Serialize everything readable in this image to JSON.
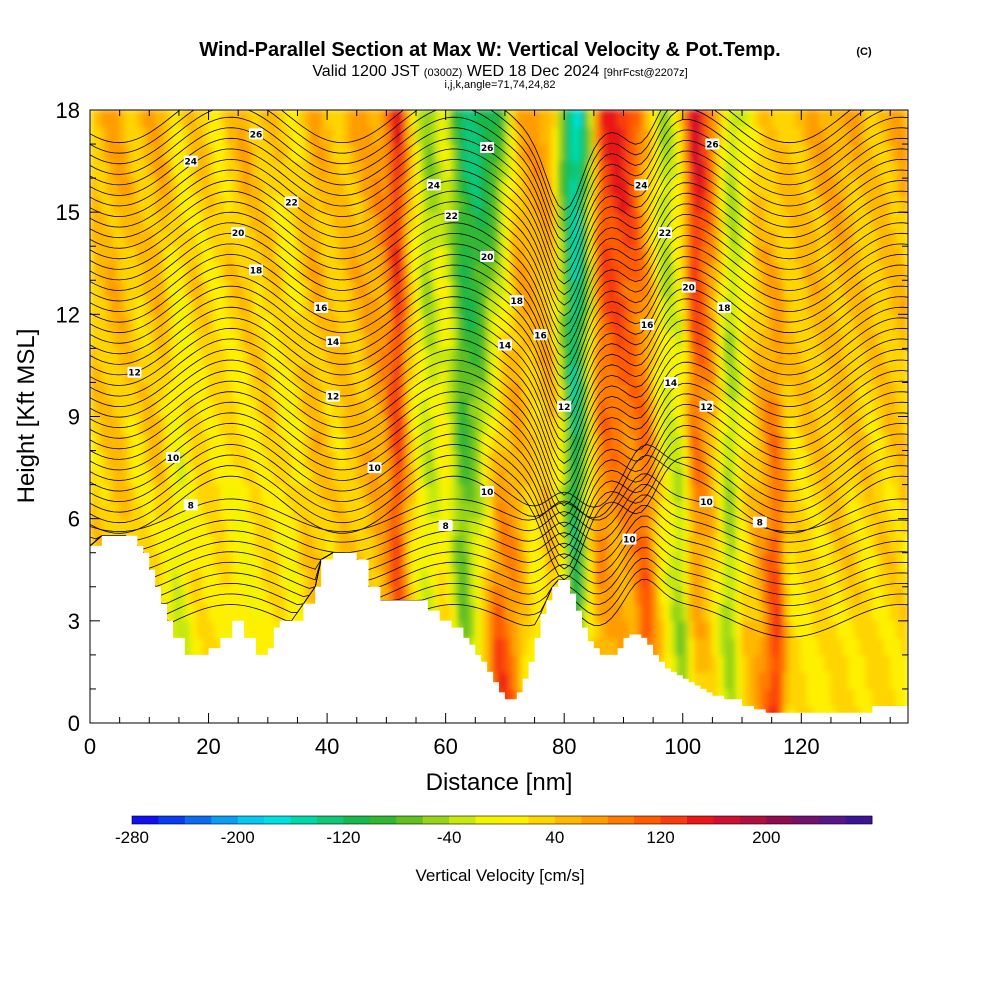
{
  "chart_data": {
    "type": "heatmap",
    "title": "Wind-Parallel Section at Max W: Vertical Velocity & Pot.Temp.",
    "title_mark": "(C)",
    "subtitle": {
      "pre": "Valid 1200 JST",
      "utc": "(0300Z)",
      "mid": "WED 18 Dec 2024",
      "fcst": "[9hrFcst@2207z]"
    },
    "subtitle2": "i,j,k,angle=71,74,24,82",
    "xlabel": "Distance [nm]",
    "ylabel": "Height [Kft MSL]",
    "xlim": [
      0,
      138
    ],
    "ylim": [
      0,
      18
    ],
    "x_ticks": [
      0,
      20,
      40,
      60,
      80,
      100,
      120
    ],
    "y_ticks": [
      0,
      3,
      6,
      9,
      12,
      15,
      18
    ],
    "grid": false,
    "colorbar": {
      "label": "Vertical Velocity [cm/s]",
      "min": -280,
      "max": 280,
      "step": 20,
      "tick_values": [
        -280,
        -200,
        -120,
        -40,
        40,
        120,
        200
      ],
      "colors": [
        "#1010f0",
        "#0c3cf0",
        "#0c6cf0",
        "#0c9cf0",
        "#08c8f0",
        "#00e0e0",
        "#00d8a8",
        "#10c878",
        "#18b84c",
        "#30b830",
        "#60c020",
        "#98d418",
        "#c8e810",
        "#f4f400",
        "#fff000",
        "#ffd400",
        "#ffb800",
        "#ff9c00",
        "#ff7c00",
        "#ff5c00",
        "#f83c10",
        "#e81818",
        "#d01030",
        "#b01040",
        "#900c50",
        "#741070",
        "#581488",
        "#3c1498"
      ]
    },
    "vertical_velocity_columns": {
      "description_units": "cm/s",
      "x": [
        0,
        5,
        8,
        12,
        15,
        18,
        22,
        26,
        30,
        34,
        38,
        41,
        46,
        50,
        52,
        54,
        57,
        60,
        63,
        66,
        69,
        72,
        75,
        78,
        80,
        82,
        84,
        86,
        89,
        92,
        94,
        97,
        100,
        102,
        105,
        108,
        110,
        113,
        116,
        118,
        122,
        127,
        132,
        138
      ],
      "w_low": [
        20,
        30,
        10,
        20,
        -40,
        10,
        20,
        -30,
        20,
        0,
        40,
        20,
        30,
        60,
        120,
        40,
        -20,
        30,
        -60,
        40,
        160,
        80,
        -20,
        40,
        20,
        -120,
        20,
        60,
        30,
        60,
        140,
        20,
        -80,
        40,
        20,
        -60,
        30,
        60,
        160,
        20,
        10,
        20,
        20,
        20
      ],
      "w_high": [
        40,
        60,
        40,
        60,
        20,
        40,
        20,
        60,
        40,
        20,
        60,
        40,
        60,
        80,
        160,
        40,
        -60,
        -20,
        -120,
        -140,
        -100,
        40,
        80,
        60,
        -100,
        -180,
        -80,
        120,
        160,
        120,
        40,
        -60,
        40,
        180,
        100,
        -40,
        -20,
        40,
        20,
        40,
        60,
        60,
        40,
        60
      ]
    },
    "terrain": {
      "x": [
        0,
        2,
        6,
        8,
        9,
        10,
        11,
        12,
        13,
        14,
        16,
        18,
        20,
        22,
        24,
        25,
        26,
        28,
        29,
        30,
        31,
        32,
        34,
        36,
        38,
        39,
        41,
        43,
        45,
        47,
        49,
        51,
        53,
        55,
        57,
        59,
        61,
        63,
        64,
        65,
        66,
        67,
        68,
        69,
        70,
        71,
        72,
        73,
        74,
        75,
        76,
        77,
        78,
        79,
        80,
        81,
        82,
        83,
        84,
        85,
        86,
        87,
        88,
        89,
        90,
        91,
        92,
        93,
        94,
        95,
        96,
        97,
        98,
        99,
        100,
        101,
        102,
        103,
        104,
        105,
        107,
        110,
        112,
        114,
        116,
        118,
        120,
        122,
        124,
        128,
        132,
        138
      ],
      "height_kft": [
        5.2,
        5.5,
        5.5,
        5.2,
        5.0,
        4.5,
        4.0,
        3.5,
        3.0,
        2.5,
        2.0,
        2.0,
        2.2,
        2.5,
        3.0,
        3.0,
        2.5,
        2.0,
        2.0,
        2.2,
        2.8,
        3.0,
        3.0,
        3.5,
        4.0,
        4.8,
        5.0,
        5.0,
        4.8,
        4.0,
        3.6,
        3.6,
        3.6,
        3.6,
        3.3,
        3.0,
        2.8,
        2.5,
        2.3,
        2.0,
        1.8,
        1.5,
        1.2,
        0.9,
        0.7,
        0.7,
        0.9,
        1.3,
        1.8,
        2.5,
        3.2,
        3.6,
        4.0,
        4.2,
        4.2,
        3.8,
        3.3,
        2.8,
        2.4,
        2.2,
        2.0,
        2.0,
        2.0,
        2.2,
        2.5,
        2.6,
        2.6,
        2.5,
        2.3,
        2.0,
        1.8,
        1.6,
        1.5,
        1.4,
        1.3,
        1.2,
        1.1,
        1.0,
        0.9,
        0.8,
        0.7,
        0.5,
        0.4,
        0.3,
        0.3,
        0.3,
        0.3,
        0.3,
        0.3,
        0.3,
        0.5,
        0.6
      ]
    },
    "potential_temperature_contours": {
      "levels_labeled": [
        8,
        10,
        12,
        14,
        16,
        18,
        20,
        22,
        24,
        26
      ],
      "labels": [
        {
          "text": "26",
          "x": 28,
          "y": 17.3
        },
        {
          "text": "24",
          "x": 17,
          "y": 16.5
        },
        {
          "text": "22",
          "x": 34,
          "y": 15.3
        },
        {
          "text": "20",
          "x": 25,
          "y": 14.4
        },
        {
          "text": "18",
          "x": 28,
          "y": 13.3
        },
        {
          "text": "16",
          "x": 39,
          "y": 12.2
        },
        {
          "text": "14",
          "x": 41,
          "y": 11.2
        },
        {
          "text": "12",
          "x": 7.5,
          "y": 10.3
        },
        {
          "text": "12",
          "x": 41,
          "y": 9.6
        },
        {
          "text": "10",
          "x": 14,
          "y": 7.8
        },
        {
          "text": "10",
          "x": 48,
          "y": 7.5
        },
        {
          "text": "8",
          "x": 17,
          "y": 6.4
        },
        {
          "text": "26",
          "x": 67,
          "y": 16.9
        },
        {
          "text": "24",
          "x": 58,
          "y": 15.8
        },
        {
          "text": "22",
          "x": 61,
          "y": 14.9
        },
        {
          "text": "20",
          "x": 67,
          "y": 13.7
        },
        {
          "text": "18",
          "x": 72,
          "y": 12.4
        },
        {
          "text": "16",
          "x": 76,
          "y": 11.4
        },
        {
          "text": "14",
          "x": 70,
          "y": 11.1
        },
        {
          "text": "12",
          "x": 80,
          "y": 9.3
        },
        {
          "text": "10",
          "x": 67,
          "y": 6.8
        },
        {
          "text": "8",
          "x": 60,
          "y": 5.8
        },
        {
          "text": "26",
          "x": 105,
          "y": 17.0
        },
        {
          "text": "24",
          "x": 93,
          "y": 15.8
        },
        {
          "text": "22",
          "x": 97,
          "y": 14.4
        },
        {
          "text": "20",
          "x": 101,
          "y": 12.8
        },
        {
          "text": "18",
          "x": 107,
          "y": 12.2
        },
        {
          "text": "16",
          "x": 94,
          "y": 11.7
        },
        {
          "text": "14",
          "x": 98,
          "y": 10.0
        },
        {
          "text": "12",
          "x": 104,
          "y": 9.3
        },
        {
          "text": "10",
          "x": 104,
          "y": 6.5
        },
        {
          "text": "10",
          "x": 91,
          "y": 5.4
        },
        {
          "text": "8",
          "x": 113,
          "y": 5.9
        }
      ]
    }
  }
}
